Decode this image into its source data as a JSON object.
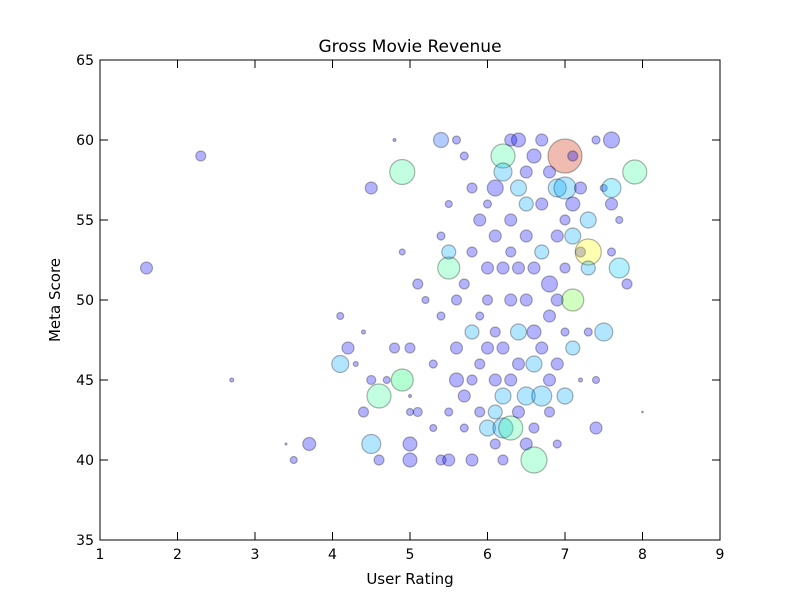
{
  "chart_data": {
    "type": "scatter",
    "title": "Gross Movie Revenue",
    "xlabel": "User Rating",
    "ylabel": "Meta Score",
    "xlim": [
      1,
      9
    ],
    "ylim": [
      35,
      65
    ],
    "x_ticks": [
      "1",
      "2",
      "3",
      "4",
      "5",
      "6",
      "7",
      "8",
      "9"
    ],
    "y_ticks": [
      "35",
      "40",
      "45",
      "50",
      "55",
      "60",
      "65"
    ],
    "grid": false,
    "legend": "none",
    "marker_alpha": 0.3,
    "size_encodes": "gross revenue (relative bubble radius)",
    "points": [
      {
        "x": 1.6,
        "y": 52,
        "r": 6,
        "color": "#0000ff"
      },
      {
        "x": 2.3,
        "y": 59,
        "r": 5,
        "color": "#0000ff"
      },
      {
        "x": 2.7,
        "y": 45,
        "r": 2,
        "color": "#0000ff"
      },
      {
        "x": 3.4,
        "y": 41,
        "r": 1,
        "color": "#0000ff"
      },
      {
        "x": 3.5,
        "y": 40,
        "r": 3.5,
        "color": "#0000ff"
      },
      {
        "x": 3.7,
        "y": 41,
        "r": 6.5,
        "color": "#0000ff"
      },
      {
        "x": 4.1,
        "y": 46,
        "r": 8.5,
        "color": "#00aaff"
      },
      {
        "x": 4.1,
        "y": 49,
        "r": 3.5,
        "color": "#0000ff"
      },
      {
        "x": 4.2,
        "y": 47,
        "r": 6,
        "color": "#0000ff"
      },
      {
        "x": 4.3,
        "y": 46,
        "r": 2.5,
        "color": "#0000ff"
      },
      {
        "x": 4.4,
        "y": 43,
        "r": 5,
        "color": "#0000ff"
      },
      {
        "x": 4.4,
        "y": 48,
        "r": 2,
        "color": "#0000ff"
      },
      {
        "x": 4.5,
        "y": 57,
        "r": 6,
        "color": "#0000ff"
      },
      {
        "x": 4.5,
        "y": 45,
        "r": 4.5,
        "color": "#0000ff"
      },
      {
        "x": 4.5,
        "y": 41,
        "r": 9.5,
        "color": "#00aaff"
      },
      {
        "x": 4.6,
        "y": 40,
        "r": 5,
        "color": "#0000ff"
      },
      {
        "x": 4.6,
        "y": 44,
        "r": 12,
        "color": "#33ff99"
      },
      {
        "x": 4.7,
        "y": 45,
        "r": 3.5,
        "color": "#0000ff"
      },
      {
        "x": 4.8,
        "y": 47,
        "r": 5,
        "color": "#0000ff"
      },
      {
        "x": 4.8,
        "y": 60,
        "r": 1.5,
        "color": "#0000ff"
      },
      {
        "x": 4.9,
        "y": 58,
        "r": 12.5,
        "color": "#33ff99"
      },
      {
        "x": 4.9,
        "y": 45,
        "r": 11,
        "color": "#00ff66"
      },
      {
        "x": 4.9,
        "y": 53,
        "r": 3,
        "color": "#0000ff"
      },
      {
        "x": 5.0,
        "y": 43,
        "r": 3.5,
        "color": "#0000ff"
      },
      {
        "x": 5.0,
        "y": 47,
        "r": 5,
        "color": "#0000ff"
      },
      {
        "x": 5.0,
        "y": 41,
        "r": 7,
        "color": "#0000ff"
      },
      {
        "x": 5.0,
        "y": 40,
        "r": 7,
        "color": "#0000ff"
      },
      {
        "x": 5.0,
        "y": 44,
        "r": 1.5,
        "color": "#0000ff"
      },
      {
        "x": 5.1,
        "y": 43,
        "r": 4.5,
        "color": "#0000ff"
      },
      {
        "x": 5.1,
        "y": 51,
        "r": 5,
        "color": "#0000ff"
      },
      {
        "x": 5.2,
        "y": 50,
        "r": 3.5,
        "color": "#0000ff"
      },
      {
        "x": 5.3,
        "y": 46,
        "r": 4,
        "color": "#0000ff"
      },
      {
        "x": 5.3,
        "y": 42,
        "r": 3.5,
        "color": "#0000ff"
      },
      {
        "x": 5.4,
        "y": 60,
        "r": 7.5,
        "color": "#0055ff"
      },
      {
        "x": 5.4,
        "y": 49,
        "r": 4,
        "color": "#0000ff"
      },
      {
        "x": 5.4,
        "y": 40,
        "r": 5,
        "color": "#0000ff"
      },
      {
        "x": 5.4,
        "y": 54,
        "r": 4,
        "color": "#0000ff"
      },
      {
        "x": 5.5,
        "y": 52,
        "r": 11,
        "color": "#33ff99"
      },
      {
        "x": 5.5,
        "y": 53,
        "r": 7,
        "color": "#00aaff"
      },
      {
        "x": 5.5,
        "y": 40,
        "r": 6,
        "color": "#0000ff"
      },
      {
        "x": 5.5,
        "y": 43,
        "r": 4,
        "color": "#0000ff"
      },
      {
        "x": 5.5,
        "y": 56,
        "r": 3.5,
        "color": "#0000ff"
      },
      {
        "x": 5.6,
        "y": 47,
        "r": 6,
        "color": "#0000ff"
      },
      {
        "x": 5.6,
        "y": 45,
        "r": 7,
        "color": "#0000ff"
      },
      {
        "x": 5.6,
        "y": 50,
        "r": 5,
        "color": "#0000ff"
      },
      {
        "x": 5.6,
        "y": 60,
        "r": 4,
        "color": "#0000ff"
      },
      {
        "x": 5.7,
        "y": 59,
        "r": 4,
        "color": "#0000ff"
      },
      {
        "x": 5.7,
        "y": 51,
        "r": 5,
        "color": "#0000ff"
      },
      {
        "x": 5.7,
        "y": 44,
        "r": 6,
        "color": "#0000ff"
      },
      {
        "x": 5.7,
        "y": 42,
        "r": 4,
        "color": "#0000ff"
      },
      {
        "x": 5.8,
        "y": 48,
        "r": 7,
        "color": "#00aaff"
      },
      {
        "x": 5.8,
        "y": 45,
        "r": 5,
        "color": "#0000ff"
      },
      {
        "x": 5.8,
        "y": 40,
        "r": 6,
        "color": "#0000ff"
      },
      {
        "x": 5.8,
        "y": 57,
        "r": 5,
        "color": "#0000ff"
      },
      {
        "x": 5.8,
        "y": 53,
        "r": 5,
        "color": "#0000ff"
      },
      {
        "x": 5.9,
        "y": 55,
        "r": 6,
        "color": "#0000ff"
      },
      {
        "x": 5.9,
        "y": 49,
        "r": 4,
        "color": "#0000ff"
      },
      {
        "x": 5.9,
        "y": 46,
        "r": 5,
        "color": "#0000ff"
      },
      {
        "x": 5.9,
        "y": 43,
        "r": 5,
        "color": "#0000ff"
      },
      {
        "x": 6.0,
        "y": 42,
        "r": 8,
        "color": "#00aaff"
      },
      {
        "x": 6.0,
        "y": 47,
        "r": 6,
        "color": "#0000ff"
      },
      {
        "x": 6.0,
        "y": 52,
        "r": 6,
        "color": "#0000ff"
      },
      {
        "x": 6.0,
        "y": 56,
        "r": 4,
        "color": "#0000ff"
      },
      {
        "x": 6.0,
        "y": 50,
        "r": 5,
        "color": "#0000ff"
      },
      {
        "x": 6.1,
        "y": 57,
        "r": 8,
        "color": "#0000ff"
      },
      {
        "x": 6.1,
        "y": 43,
        "r": 7,
        "color": "#00aaff"
      },
      {
        "x": 6.1,
        "y": 45,
        "r": 6,
        "color": "#0000ff"
      },
      {
        "x": 6.1,
        "y": 48,
        "r": 5,
        "color": "#0000ff"
      },
      {
        "x": 6.1,
        "y": 54,
        "r": 6,
        "color": "#0000ff"
      },
      {
        "x": 6.1,
        "y": 41,
        "r": 5,
        "color": "#0000ff"
      },
      {
        "x": 6.2,
        "y": 59,
        "r": 12,
        "color": "#33ff99"
      },
      {
        "x": 6.2,
        "y": 58,
        "r": 9,
        "color": "#00aaff"
      },
      {
        "x": 6.2,
        "y": 44,
        "r": 8,
        "color": "#00aaff"
      },
      {
        "x": 6.2,
        "y": 42,
        "r": 10,
        "color": "#00aaff"
      },
      {
        "x": 6.2,
        "y": 52,
        "r": 6,
        "color": "#0000ff"
      },
      {
        "x": 6.2,
        "y": 47,
        "r": 6,
        "color": "#0000ff"
      },
      {
        "x": 6.2,
        "y": 40,
        "r": 5,
        "color": "#0000ff"
      },
      {
        "x": 6.3,
        "y": 42,
        "r": 12,
        "color": "#33ff99"
      },
      {
        "x": 6.3,
        "y": 60,
        "r": 6,
        "color": "#0000ff"
      },
      {
        "x": 6.3,
        "y": 55,
        "r": 6,
        "color": "#0000ff"
      },
      {
        "x": 6.3,
        "y": 50,
        "r": 6,
        "color": "#0000ff"
      },
      {
        "x": 6.3,
        "y": 45,
        "r": 6,
        "color": "#0000ff"
      },
      {
        "x": 6.3,
        "y": 53,
        "r": 5,
        "color": "#0000ff"
      },
      {
        "x": 6.4,
        "y": 48,
        "r": 8,
        "color": "#00aaff"
      },
      {
        "x": 6.4,
        "y": 57,
        "r": 8,
        "color": "#00aaff"
      },
      {
        "x": 6.4,
        "y": 60,
        "r": 7,
        "color": "#0000ff"
      },
      {
        "x": 6.4,
        "y": 52,
        "r": 6,
        "color": "#0000ff"
      },
      {
        "x": 6.4,
        "y": 46,
        "r": 6,
        "color": "#0000ff"
      },
      {
        "x": 6.4,
        "y": 43,
        "r": 6,
        "color": "#0000ff"
      },
      {
        "x": 6.5,
        "y": 44,
        "r": 9,
        "color": "#00aaff"
      },
      {
        "x": 6.5,
        "y": 56,
        "r": 7,
        "color": "#00aaff"
      },
      {
        "x": 6.5,
        "y": 54,
        "r": 6,
        "color": "#0000ff"
      },
      {
        "x": 6.5,
        "y": 58,
        "r": 6,
        "color": "#0000ff"
      },
      {
        "x": 6.5,
        "y": 50,
        "r": 6,
        "color": "#0000ff"
      },
      {
        "x": 6.5,
        "y": 41,
        "r": 6,
        "color": "#0000ff"
      },
      {
        "x": 6.6,
        "y": 40,
        "r": 13,
        "color": "#33ff99"
      },
      {
        "x": 6.6,
        "y": 46,
        "r": 8,
        "color": "#00aaff"
      },
      {
        "x": 6.6,
        "y": 59,
        "r": 7,
        "color": "#0000ff"
      },
      {
        "x": 6.6,
        "y": 48,
        "r": 7,
        "color": "#0000ff"
      },
      {
        "x": 6.6,
        "y": 52,
        "r": 6,
        "color": "#0000ff"
      },
      {
        "x": 6.6,
        "y": 42,
        "r": 5,
        "color": "#0000ff"
      },
      {
        "x": 6.7,
        "y": 44,
        "r": 10,
        "color": "#00aaff"
      },
      {
        "x": 6.7,
        "y": 53,
        "r": 7,
        "color": "#00aaff"
      },
      {
        "x": 6.7,
        "y": 60,
        "r": 6,
        "color": "#0000ff"
      },
      {
        "x": 6.7,
        "y": 47,
        "r": 6,
        "color": "#0000ff"
      },
      {
        "x": 6.7,
        "y": 56,
        "r": 6,
        "color": "#0000ff"
      },
      {
        "x": 6.8,
        "y": 51,
        "r": 8,
        "color": "#0000ff"
      },
      {
        "x": 6.8,
        "y": 45,
        "r": 6,
        "color": "#0000ff"
      },
      {
        "x": 6.8,
        "y": 58,
        "r": 6,
        "color": "#0000ff"
      },
      {
        "x": 6.8,
        "y": 49,
        "r": 6,
        "color": "#0000ff"
      },
      {
        "x": 6.8,
        "y": 43,
        "r": 5,
        "color": "#0000ff"
      },
      {
        "x": 6.9,
        "y": 57,
        "r": 9,
        "color": "#00aaff"
      },
      {
        "x": 6.9,
        "y": 50,
        "r": 6,
        "color": "#0000ff"
      },
      {
        "x": 6.9,
        "y": 54,
        "r": 6,
        "color": "#0000ff"
      },
      {
        "x": 6.9,
        "y": 46,
        "r": 6,
        "color": "#0000ff"
      },
      {
        "x": 6.9,
        "y": 41,
        "r": 4,
        "color": "#0000ff"
      },
      {
        "x": 7.0,
        "y": 59,
        "r": 17,
        "color": "#cc2200"
      },
      {
        "x": 7.0,
        "y": 57,
        "r": 11,
        "color": "#00aaff"
      },
      {
        "x": 7.0,
        "y": 44,
        "r": 8,
        "color": "#00aaff"
      },
      {
        "x": 7.0,
        "y": 55,
        "r": 5,
        "color": "#0000ff"
      },
      {
        "x": 7.0,
        "y": 52,
        "r": 5,
        "color": "#0000ff"
      },
      {
        "x": 7.0,
        "y": 48,
        "r": 4,
        "color": "#0000ff"
      },
      {
        "x": 7.1,
        "y": 50,
        "r": 11,
        "color": "#66ff33"
      },
      {
        "x": 7.1,
        "y": 54,
        "r": 8,
        "color": "#00aaff"
      },
      {
        "x": 7.1,
        "y": 47,
        "r": 7,
        "color": "#00aaff"
      },
      {
        "x": 7.1,
        "y": 56,
        "r": 7,
        "color": "#0000ff"
      },
      {
        "x": 7.1,
        "y": 59,
        "r": 5,
        "color": "#0000ff"
      },
      {
        "x": 7.2,
        "y": 57,
        "r": 6,
        "color": "#0000ff"
      },
      {
        "x": 7.2,
        "y": 53,
        "r": 5,
        "color": "#0000ff"
      },
      {
        "x": 7.2,
        "y": 45,
        "r": 2,
        "color": "#0000ff"
      },
      {
        "x": 7.3,
        "y": 53,
        "r": 13,
        "color": "#ffff00"
      },
      {
        "x": 7.3,
        "y": 55,
        "r": 8,
        "color": "#00aaff"
      },
      {
        "x": 7.3,
        "y": 52,
        "r": 7,
        "color": "#00aaff"
      },
      {
        "x": 7.3,
        "y": 48,
        "r": 4,
        "color": "#0000ff"
      },
      {
        "x": 7.4,
        "y": 42,
        "r": 6,
        "color": "#0000ff"
      },
      {
        "x": 7.4,
        "y": 45,
        "r": 3.5,
        "color": "#0000ff"
      },
      {
        "x": 7.4,
        "y": 60,
        "r": 4,
        "color": "#0000ff"
      },
      {
        "x": 7.5,
        "y": 48,
        "r": 9,
        "color": "#00aaff"
      },
      {
        "x": 7.5,
        "y": 57,
        "r": 3.5,
        "color": "#0000ff"
      },
      {
        "x": 7.6,
        "y": 60,
        "r": 8,
        "color": "#0000ff"
      },
      {
        "x": 7.6,
        "y": 57,
        "r": 9.5,
        "color": "#00ccff"
      },
      {
        "x": 7.6,
        "y": 56,
        "r": 6,
        "color": "#0000ff"
      },
      {
        "x": 7.6,
        "y": 53,
        "r": 4,
        "color": "#0000ff"
      },
      {
        "x": 7.7,
        "y": 52,
        "r": 10,
        "color": "#00ccff"
      },
      {
        "x": 7.7,
        "y": 55,
        "r": 3.5,
        "color": "#0000ff"
      },
      {
        "x": 7.8,
        "y": 51,
        "r": 5,
        "color": "#0000ff"
      },
      {
        "x": 7.9,
        "y": 58,
        "r": 12,
        "color": "#33ff99"
      },
      {
        "x": 8.0,
        "y": 43,
        "r": 0.8,
        "color": "#0000ff"
      }
    ]
  }
}
